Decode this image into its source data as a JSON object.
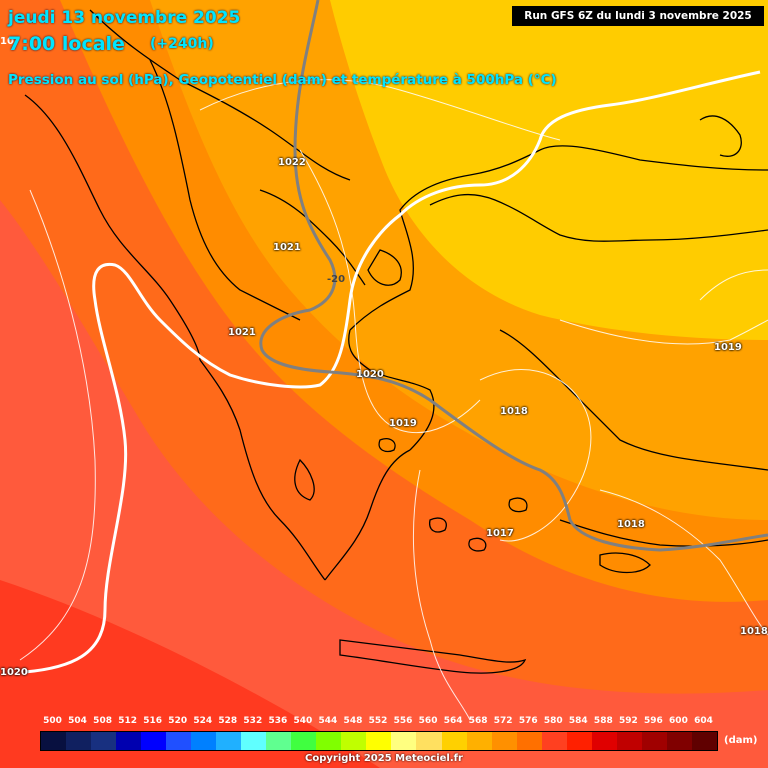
{
  "header": {
    "date_line": "jeudi 13 novembre 2025",
    "time_line": "7:00 locale",
    "forecast_hours": "(+240h)",
    "subtitle": "Pression au sol (hPa), Geopotentiel (dam) et température à 500hPa (°C)",
    "run_info": "Run GFS 6Z du lundi 3 novembre 2025",
    "cut_label": "10"
  },
  "isobar_labels": [
    "1022",
    "1021",
    "1021",
    "1020",
    "1019",
    "1018",
    "1017",
    "1018",
    "1019",
    "1018",
    "1020"
  ],
  "temp_label": "-20",
  "colors": {
    "band_564": "#ff5a3c",
    "band_568": "#ff6a1a",
    "band_572": "#ff8c00",
    "band_576": "#ffa200",
    "band_580": "#ffcc00",
    "band_560": "#ff3a20",
    "coast": "#000000",
    "isobar": "#ffffff",
    "isotherm": "#808080"
  },
  "legend": {
    "values": [
      "500",
      "504",
      "508",
      "512",
      "516",
      "520",
      "524",
      "528",
      "532",
      "536",
      "540",
      "544",
      "548",
      "552",
      "556",
      "560",
      "564",
      "568",
      "572",
      "576",
      "580",
      "584",
      "588",
      "592",
      "596",
      "600",
      "604"
    ],
    "colors": [
      "#081040",
      "#102060",
      "#183080",
      "#0000b0",
      "#0000ff",
      "#2050ff",
      "#0080ff",
      "#20b0ff",
      "#60ffff",
      "#60ff90",
      "#40ff40",
      "#80ff00",
      "#c0ff00",
      "#ffff00",
      "#ffff80",
      "#ffe060",
      "#ffd000",
      "#ffb000",
      "#ff9000",
      "#ff7000",
      "#ff4020",
      "#ff2000",
      "#e00000",
      "#c00000",
      "#a00000",
      "#800000",
      "#600000"
    ],
    "unit": "(dam)"
  },
  "copyright": "Copyright 2025 Meteociel.fr"
}
